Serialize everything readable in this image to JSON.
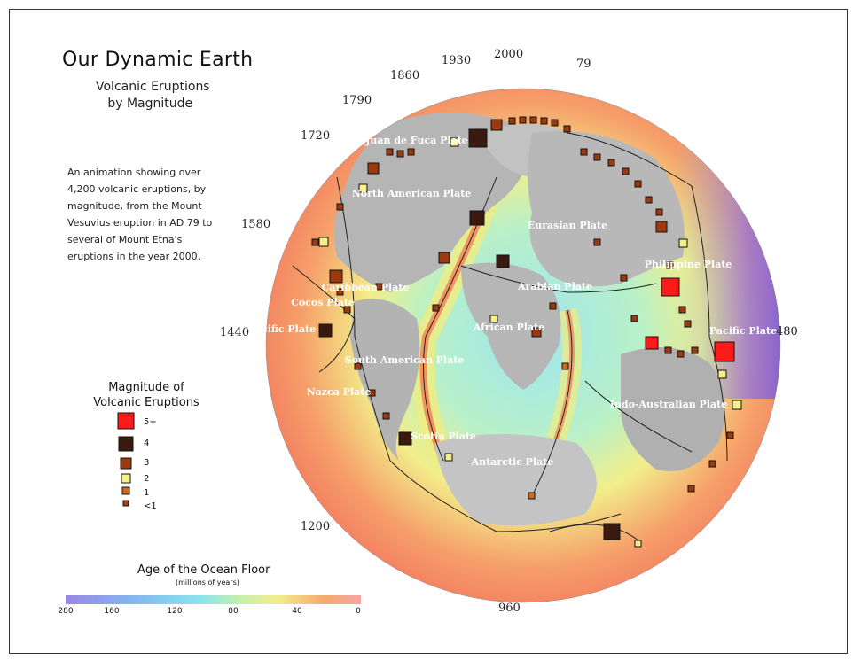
{
  "title": "Our Dynamic Earth",
  "subtitle": "Volcanic Eruptions\n   by Magnitude",
  "description": "An animation showing over 4,200 volcanic eruptions, by magnitude, from the Mount Vesuvius eruption in AD 79 to several of Mount Etna's eruptions in the year 2000.",
  "magnitude_legend": {
    "title": "Magnitude of Volcanic Eruptions",
    "items": [
      {
        "label": "5+",
        "color": "#ff1a1a"
      },
      {
        "label": "4",
        "color": "#3a1a10"
      },
      {
        "label": "3",
        "color": "#9c3a0e"
      },
      {
        "label": "2",
        "color": "#f6f08a"
      },
      {
        "label": "1",
        "color": "#d2691e"
      },
      {
        "label": "<1",
        "color": "#b03a14"
      }
    ]
  },
  "age_legend": {
    "title": "Age of the Ocean Floor",
    "subtitle": "(millions of years)",
    "ticks": [
      "280",
      "160",
      "120",
      "80",
      "40",
      "0"
    ]
  },
  "years": [
    "79",
    "2000",
    "1930",
    "1860",
    "1790",
    "1720",
    "1580",
    "1440",
    "1200",
    "960",
    "480"
  ],
  "plates": [
    "Juan de Fuca Plate",
    "North American Plate",
    "Eurasian Plate",
    "Philippine Plate",
    "Pacific Plate",
    "Pacific Plate",
    "Cocos Plate",
    "Caribbean Plate",
    "Arabian Plate",
    "African Plate",
    "South American Plate",
    "Nazca Plate",
    "Indo-Australian Plate",
    "Scotia Plate",
    "Antarctic Plate"
  ],
  "colors": {
    "frame": "#333333",
    "land": "#b8b8b8",
    "eruption_outline": "#111111"
  }
}
